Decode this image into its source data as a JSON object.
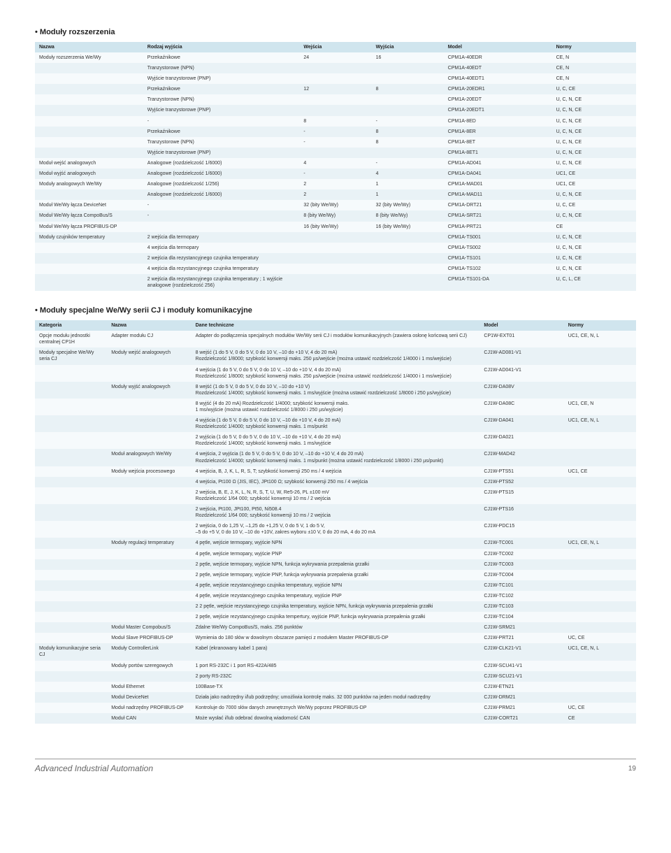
{
  "titles": {
    "section1": "• Moduły rozszerzenia",
    "section2": "• Moduły specjalne We/Wy serii CJ i moduły komunikacyjne"
  },
  "footer": {
    "brand": "Advanced Industrial Automation",
    "page": "19"
  },
  "table1": {
    "headers": [
      "Nazwa",
      "Rodzaj wyjścia",
      "Wejścia",
      "Wyjścia",
      "Model",
      "Normy"
    ],
    "rows": [
      [
        "Moduły rozszerzenia We/Wy",
        "Przekaźnikowe",
        "24",
        "16",
        "CPM1A-40EDR",
        "CE, N"
      ],
      [
        "",
        "Tranzystorowe (NPN)",
        "",
        "",
        "CPM1A-40EDT",
        "CE, N"
      ],
      [
        "",
        "Wyjście tranzystorowe (PNP)",
        "",
        "",
        "CPM1A-40EDT1",
        "CE, N"
      ],
      [
        "",
        "Przekaźnikowe",
        "12",
        "8",
        "CPM1A-20EDR1",
        "U, C, CE"
      ],
      [
        "",
        "Tranzystorowe (NPN)",
        "",
        "",
        "CPM1A-20EDT",
        "U, C, N, CE"
      ],
      [
        "",
        "Wyjście tranzystorowe (PNP)",
        "",
        "",
        "CPM1A-20EDT1",
        "U, C, N, CE"
      ],
      [
        "",
        "-",
        "8",
        "-",
        "CPM1A-8ED",
        "U, C, N, CE"
      ],
      [
        "",
        "Przekaźnikowe",
        "-",
        "8",
        "CPM1A-8ER",
        "U, C, N, CE"
      ],
      [
        "",
        "Tranzystorowe (NPN)",
        "-",
        "8",
        "CPM1A-8ET",
        "U, C, N, CE"
      ],
      [
        "",
        "Wyjście tranzystorowe (PNP)",
        "",
        "",
        "CPM1A-8ET1",
        "U, C, N, CE"
      ],
      [
        "Moduł wejść analogowych",
        "Analogowe (rozdzielczość 1/6000)",
        "4",
        "-",
        "CPM1A-AD041",
        "U, C, N, CE"
      ],
      [
        "Moduł wyjść analogowych",
        "Analogowe (rozdzielczość 1/6000)",
        "-",
        "4",
        "CPM1A-DA041",
        "UC1, CE"
      ],
      [
        "Moduły analogowych We/Wy",
        "Analogowe (rozdzielczość 1/256)",
        "2",
        "1",
        "CPM1A-MAD01",
        "UC1, CE"
      ],
      [
        "",
        "Analogowe (rozdzielczość 1/6000)",
        "2",
        "1",
        "CPM1A-MAD11",
        "U, C, N, CE"
      ],
      [
        "Moduł We/Wy łącza DeviceNet",
        "-",
        "32 (bity We/Wy)",
        "32 (bity We/Wy)",
        "CPM1A-DRT21",
        "U, C, CE"
      ],
      [
        "Moduł We/Wy łącza CompoBus/S",
        "-",
        "8 (bity We/Wy)",
        "8 (bity We/Wy)",
        "CPM1A-SRT21",
        "U, C, N, CE"
      ],
      [
        "Moduł We/Wy łącza PROFIBUS-DP",
        "",
        "16 (bity We/Wy)",
        "16 (bity We/Wy)",
        "CPM1A-PRT21",
        "CE"
      ],
      [
        "Moduły czujników temperatury",
        "2 wejścia dla termopary",
        "",
        "",
        "CPM1A-TS001",
        "U, C, N, CE"
      ],
      [
        "",
        "4 wejścia dla termopary",
        "",
        "",
        "CPM1A-TS002",
        "U, C, N, CE"
      ],
      [
        "",
        "2 wejścia dla rezystancyjnego czujnika temperatury",
        "",
        "",
        "CPM1A-TS101",
        "U, C, N, CE"
      ],
      [
        "",
        "4 wejścia dla rezystancyjnego czujnika temperatury",
        "",
        "",
        "CPM1A-TS102",
        "U, C, N, CE"
      ],
      [
        "",
        "2 wejścia dla rezystancyjnego czujnika temperatury ; 1 wyjście analogowe (rozdzielczość 256)",
        "",
        "",
        "CPM1A-TS101-DA",
        "U, C, L, CE"
      ]
    ]
  },
  "table2": {
    "headers": [
      "Kategoria",
      "Nazwa",
      "Dane techniczne",
      "Model",
      "Normy"
    ],
    "rows": [
      [
        "Opcje modułu jednostki centralnej CP1H",
        "Adapter modułu CJ",
        "Adapter do podłączenia specjalnych modułów We/Wy serii CJ i modułów komunikacyjnych (zawiera osłonę końcową serii CJ)",
        "CP1W-EXT01",
        "UC1, CE, N, L"
      ],
      [
        "Moduły specjalne We/Wy seria CJ",
        "Moduły wejść analogowych",
        "8 wejść (1 do 5 V, 0 do 5 V, 0 do 10 V, –10 do +10 V, 4 do 20 mA)\nRozdzielczość 1/8000; szybkość konwersji maks. 250 µs/wejście (można ustawić rozdzielczość 1/4000 i 1 ms/wejście)",
        "CJ1W-AD081-V1",
        ""
      ],
      [
        "",
        "",
        "4 wejścia (1 do 5 V, 0 do 5 V, 0 do 10 V, –10 do +10 V, 4 do 20 mA)\nRozdzielczość 1/8000; szybkość konwersji maks. 250 µs/wejście (można ustawić rozdzielczość 1/4000 i 1 ms/wejście)",
        "CJ1W-AD041-V1",
        ""
      ],
      [
        "",
        "Moduły wyjść analogowych",
        "8 wejść (1 do 5 V, 0 do 5 V, 0 do 10 V, –10 do +10 V)\nRozdzielczość 1/4000; szybkość konwersji maks. 1 ms/wyjście (można ustawić rozdzielczość 1/8000 i 250 µs/wyjście)",
        "CJ1W-DA08V",
        ""
      ],
      [
        "",
        "",
        "8 wyjść (4 do 20 mA) Rozdzielczość 1/4000; szybkość konwersji maks.\n1 ms/wyjście (można ustawić rozdzielczość 1/8000 i 250 µs/wyjście)",
        "CJ1W-DA08C",
        "UC1, CE, N"
      ],
      [
        "",
        "",
        "4 wyjścia (1 do 5 V, 0 do 5 V, 0 do 10 V, –10 do +10 V, 4 do 20 mA)\nRozdzielczość 1/4000; szybkość konwersji maks. 1 ms/punkt",
        "CJ1W-DA041",
        "UC1, CE, N, L"
      ],
      [
        "",
        "",
        "2 wyjścia (1 do 5 V, 0 do 5 V, 0 do 10 V, –10 do +10 V, 4 do 20 mA)\nRozdzielczość 1/4000; szybkość konwersji maks. 1 ms/wyjście",
        "CJ1W-DA021",
        ""
      ],
      [
        "",
        "Moduł analogowych We/Wy",
        "4 wejścia, 2 wyjścia (1 do 5 V, 0 do 5 V, 0 do 10 V, –10 do +10 V, 4 do 20 mA)\nRozdzielczość 1/4000; szybkość konwersji maks. 1 ms/punkt (można ustawić rozdzielczość 1/8000 i 250 µs/punkt)",
        "CJ1W-MAD42",
        ""
      ],
      [
        "",
        "Moduły wejścia procesowego",
        "4 wejścia, B, J, K, L, R, S, T; szybkość konwersji 250 ms / 4 wejścia",
        "CJ1W-PTS51",
        "UC1, CE"
      ],
      [
        "",
        "",
        "4 wejścia, Pt100 Ω (JIS, IEC), JPt100 Ω; szybkość konwersji 250 ms / 4 wejścia",
        "CJ1W-PTS52",
        ""
      ],
      [
        "",
        "",
        "2 wejścia, B, E, J, K, L, N, R, S, T, U, W, Re5-26, PL ±100 mV\nRozdzielczość 1/64 000; szybkość konwersji 10 ms / 2 wejścia",
        "CJ1W-PTS15",
        ""
      ],
      [
        "",
        "",
        "2 wejścia, Pt100, JPt100, Pt50, Ni508.4\nRozdzielczość 1/64 000; szybkość konwersji 10 ms / 2 wejścia",
        "CJ1W-PTS16",
        ""
      ],
      [
        "",
        "",
        "2 wejścia, 0 do 1,25 V, –1,25 do +1,25 V, 0 do 5 V, 1 do 5 V,\n–5 do +5 V, 0 do 10 V, –10 do +10V, zakres wyboru ±10 V, 0 do 20 mA, 4 do 20 mA",
        "CJ1W-PDC15",
        ""
      ],
      [
        "",
        "Moduły regulacji temperatury",
        "4 pętle, wejście termopary, wyjście NPN",
        "CJ1W-TC001",
        "UC1, CE, N, L"
      ],
      [
        "",
        "",
        "4 pętle, wejście termopary, wyjście PNP",
        "CJ1W-TC002",
        ""
      ],
      [
        "",
        "",
        "2 pętle, wejście termopary, wyjście NPN, funkcja wykrywania przepalenia grzałki",
        "CJ1W-TC003",
        ""
      ],
      [
        "",
        "",
        "2 pętle, wejście termopary, wyjście PNP, funkcja wykrywania przepalenia grzałki",
        "CJ1W-TC004",
        ""
      ],
      [
        "",
        "",
        "4 pętle, wejście rezystancyjnego czujnika temperatury, wyjście NPN",
        "CJ1W-TC101",
        ""
      ],
      [
        "",
        "",
        "4 pętle, wejście rezystancyjnego czujnika temperatury, wyjście PNP",
        "CJ1W-TC102",
        ""
      ],
      [
        "",
        "",
        "2 2 pętle, wejście rezystancyjnego czujnika temperatury, wyjście NPN, funkcja wykrywania przepalenia grzałki",
        "CJ1W-TC103",
        ""
      ],
      [
        "",
        "",
        "2 pętle, wejście rezystancyjnego czujnika tempertury, wyjście PNP, funkcja wykrywania przepalenia grzałki",
        "CJ1W-TC104",
        ""
      ],
      [
        "",
        "Moduł Master Compobus/S",
        "Zdalne We/Wy CompoBus/S, maks. 256 punktów",
        "CJ1W-SRM21",
        ""
      ],
      [
        "",
        "Moduł Slave PROFIBUS-DP",
        "Wymienia do 180 słów w dowolnym obszarze pamięci z modułem Master PROFIBUS-DP",
        "CJ1W-PRT21",
        "UC, CE"
      ],
      [
        "Moduły komunikacyjne seria CJ",
        "Moduły ControllerLink",
        "Kabel (ekranowany kabel 1 para)",
        "CJ1W-CLK21-V1",
        "UC1, CE, N, L"
      ],
      [
        "",
        "Moduły portów szeregowych",
        "1 port RS-232C i 1 port RS-422A/485",
        "CJ1W-SCU41-V1",
        ""
      ],
      [
        "",
        "",
        "2 porty RS-232C",
        "CJ1W-SCU21-V1",
        ""
      ],
      [
        "",
        "Moduł Ethernet",
        "100Base-TX",
        "CJ1W-ETN21",
        ""
      ],
      [
        "",
        "Moduł DeviceNet",
        "Działa jako nadrzędny i/lub podrzędny; umożliwia kontrolę maks. 32 000 punktów na jeden moduł nadrzędny",
        "CJ1W-DRM21",
        ""
      ],
      [
        "",
        "Moduł nadrzędny PROFIBUS-DP",
        "Kontroluje do 7000 słów danych zewnętrznych We/Wy poprzez PROFIBUS-DP",
        "CJ1W-PRM21",
        "UC, CE"
      ],
      [
        "",
        "Moduł CAN",
        "Może wysłać i/lub odebrać dowolną wiadomość CAN",
        "CJ1W-CORT21",
        "CE"
      ]
    ]
  }
}
